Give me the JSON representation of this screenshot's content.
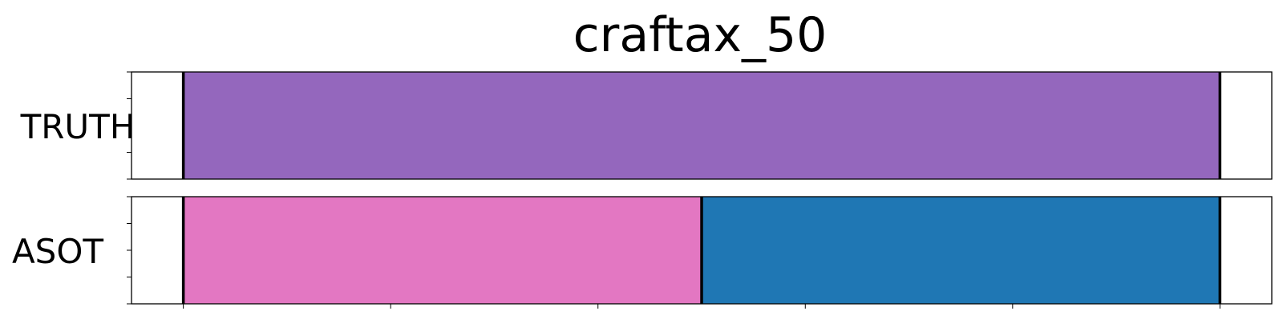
{
  "chart_data": {
    "type": "segmentation-timeline",
    "title": "craftax_50",
    "xlim": [
      -0.5,
      10.5
    ],
    "x_ticks": [
      0,
      2,
      4,
      6,
      8,
      10
    ],
    "show_tick_labels": false,
    "rows": [
      {
        "label": "TRUTH",
        "segments": [
          {
            "start": 0,
            "end": 10,
            "color": "#9467bd"
          }
        ],
        "boundaries": [
          0,
          10
        ]
      },
      {
        "label": "ASOT",
        "segments": [
          {
            "start": 0,
            "end": 5,
            "color": "#e377c2"
          },
          {
            "start": 5,
            "end": 10,
            "color": "#1f77b4"
          }
        ],
        "boundaries": [
          0,
          5,
          10
        ]
      }
    ]
  }
}
